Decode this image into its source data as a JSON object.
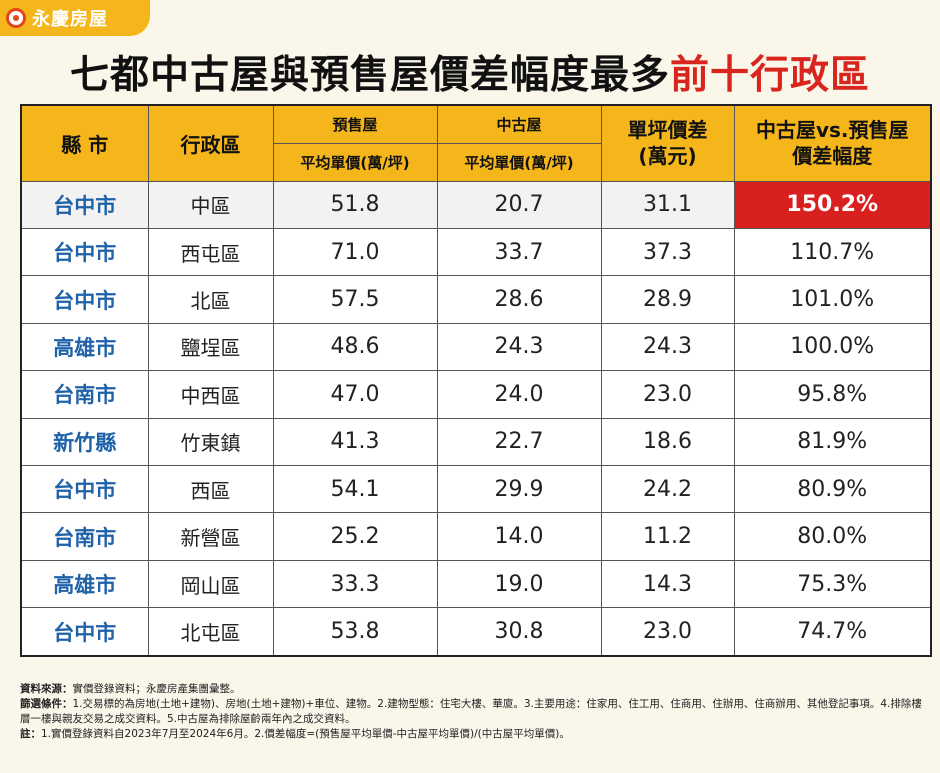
{
  "brand": {
    "name": "永慶房屋"
  },
  "title": {
    "main": "七都中古屋與預售屋價差幅度最多",
    "highlight": "前十行政區"
  },
  "table": {
    "headers": {
      "city": "縣 市",
      "district": "行政區",
      "presale": "預售屋",
      "presale_sub": "平均單價(萬/坪)",
      "used": "中古屋",
      "used_sub": "平均單價(萬/坪)",
      "diff": "單坪價差\n(萬元)",
      "ratio": "中古屋vs.預售屋\n價差幅度"
    },
    "rows": [
      {
        "city": "台中市",
        "district": "中區",
        "presale": "51.8",
        "used": "20.7",
        "diff": "31.1",
        "ratio": "150.2%"
      },
      {
        "city": "台中市",
        "district": "西屯區",
        "presale": "71.0",
        "used": "33.7",
        "diff": "37.3",
        "ratio": "110.7%"
      },
      {
        "city": "台中市",
        "district": "北區",
        "presale": "57.5",
        "used": "28.6",
        "diff": "28.9",
        "ratio": "101.0%"
      },
      {
        "city": "高雄市",
        "district": "鹽埕區",
        "presale": "48.6",
        "used": "24.3",
        "diff": "24.3",
        "ratio": "100.0%"
      },
      {
        "city": "台南市",
        "district": "中西區",
        "presale": "47.0",
        "used": "24.0",
        "diff": "23.0",
        "ratio": "95.8%"
      },
      {
        "city": "新竹縣",
        "district": "竹東鎮",
        "presale": "41.3",
        "used": "22.7",
        "diff": "18.6",
        "ratio": "81.9%"
      },
      {
        "city": "台中市",
        "district": "西區",
        "presale": "54.1",
        "used": "29.9",
        "diff": "24.2",
        "ratio": "80.9%"
      },
      {
        "city": "台南市",
        "district": "新營區",
        "presale": "25.2",
        "used": "14.0",
        "diff": "11.2",
        "ratio": "80.0%"
      },
      {
        "city": "高雄市",
        "district": "岡山區",
        "presale": "33.3",
        "used": "19.0",
        "diff": "14.3",
        "ratio": "75.3%"
      },
      {
        "city": "台中市",
        "district": "北屯區",
        "presale": "53.8",
        "used": "30.8",
        "diff": "23.0",
        "ratio": "74.7%"
      }
    ]
  },
  "notes": {
    "source_label": "資料來源：",
    "source_text": "實價登錄資料；永慶房產集團彙整。",
    "filter_label": "篩選條件：",
    "filter_text": "1.交易標的為房地(土地+建物)、房地(土地+建物)+車位、建物。2.建物型態：住宅大樓、華廈。3.主要用途：住家用、住工用、住商用、住辦用、住商辦用、其他登記事項。4.排除樓層一樓與親友交易之成交資料。5.中古屋為排除屋齡兩年內之成交資料。",
    "remark_label": "註：",
    "remark_text": "1.實價登錄資料自2023年7月至2024年6月。2.價差幅度=(預售屋平均單價-中古屋平均單價)/(中古屋平均單價)。"
  },
  "colors": {
    "accent": "#f5b61b",
    "highlight_red": "#d8201e",
    "city_blue": "#1f62a8"
  }
}
